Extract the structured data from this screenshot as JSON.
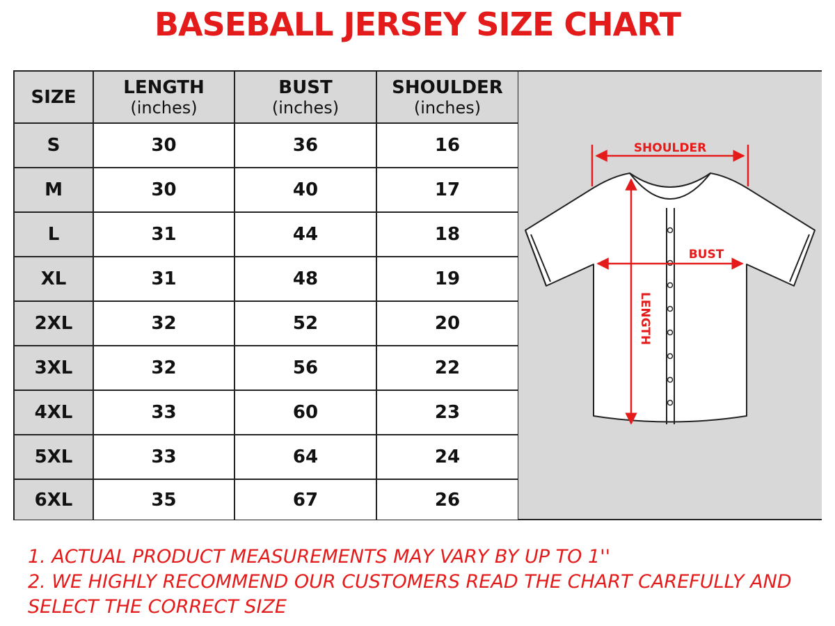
{
  "title": "BASEBALL JERSEY SIZE CHART",
  "table": {
    "headers": [
      {
        "label": "SIZE",
        "unit": ""
      },
      {
        "label": "LENGTH",
        "unit": "(inches)"
      },
      {
        "label": "BUST",
        "unit": "(inches)"
      },
      {
        "label": "SHOULDER",
        "unit": "(inches)"
      }
    ],
    "rows": [
      {
        "size": "S",
        "length": "30",
        "bust": "36",
        "shoulder": "16"
      },
      {
        "size": "M",
        "length": "30",
        "bust": "40",
        "shoulder": "17"
      },
      {
        "size": "L",
        "length": "31",
        "bust": "44",
        "shoulder": "18"
      },
      {
        "size": "XL",
        "length": "31",
        "bust": "48",
        "shoulder": "19"
      },
      {
        "size": "2XL",
        "length": "32",
        "bust": "52",
        "shoulder": "20"
      },
      {
        "size": "3XL",
        "length": "32",
        "bust": "56",
        "shoulder": "22"
      },
      {
        "size": "4XL",
        "length": "33",
        "bust": "60",
        "shoulder": "23"
      },
      {
        "size": "5XL",
        "length": "33",
        "bust": "64",
        "shoulder": "24"
      },
      {
        "size": "6XL",
        "length": "35",
        "bust": "67",
        "shoulder": "26"
      }
    ]
  },
  "diagram": {
    "shoulder_label": "SHOULDER",
    "bust_label": "BUST",
    "length_label": "LENGTH"
  },
  "notes": [
    "1. ACTUAL PRODUCT MEASUREMENTS MAY VARY BY UP TO 1''",
    "2. WE HIGHLY RECOMMEND OUR CUSTOMERS READ THE CHART CAREFULLY AND SELECT THE CORRECT SIZE"
  ],
  "colors": {
    "accent": "#e41b1b",
    "header_bg": "#d8d8d8",
    "border": "#222222"
  }
}
